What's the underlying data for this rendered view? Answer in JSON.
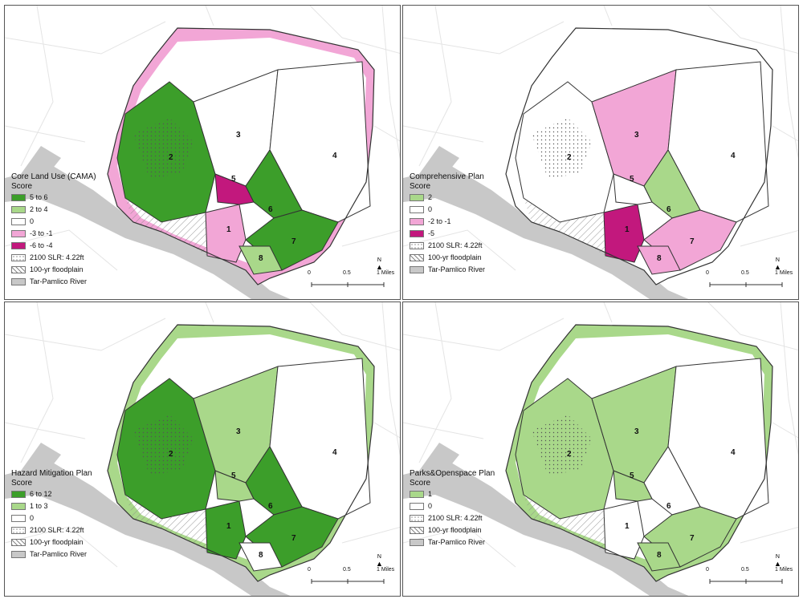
{
  "colors": {
    "dark_green": "#3c9e2a",
    "light_green": "#a9d88a",
    "white": "#ffffff",
    "light_pink": "#f2a6d6",
    "magenta": "#c2187d",
    "river": "#c8c8c8",
    "background_roads": "#e4e4e4",
    "boundary": "#333333"
  },
  "zones": [
    "1",
    "2",
    "3",
    "4",
    "5",
    "6",
    "7",
    "8"
  ],
  "scale": {
    "ticks": [
      "0",
      "0.5",
      "1 Miles"
    ]
  },
  "north_label": "N",
  "panels": [
    {
      "title_line1": "Core Land Use (CAMA)",
      "title_line2": "Score",
      "legend": [
        {
          "label": "5 to 6",
          "color": "#3c9e2a"
        },
        {
          "label": "2 to 4",
          "color": "#a9d88a"
        },
        {
          "label": "0",
          "color": "#ffffff"
        },
        {
          "label": "-3 to -1",
          "color": "#f2a6d6"
        },
        {
          "label": "-6 to -4",
          "color": "#c2187d"
        },
        {
          "label": "2100 SLR: 4.22ft",
          "pattern": "dots"
        },
        {
          "label": "100-yr floodplain",
          "pattern": "hatch"
        },
        {
          "label": "Tar-Pamlico River",
          "color": "#c8c8c8"
        }
      ],
      "zone_colors": [
        "#f2a6d6",
        "#3c9e2a",
        "#ffffff",
        "#ffffff",
        "#c2187d",
        "#3c9e2a",
        "#3c9e2a",
        "#a9d88a"
      ],
      "north_fill": "#ffffff",
      "east_fill": "#ffffff",
      "fringe_color": "#f2a6d6"
    },
    {
      "title_line1": "Comprehensive Plan",
      "title_line2": "Score",
      "legend": [
        {
          "label": "2",
          "color": "#a9d88a"
        },
        {
          "label": "0",
          "color": "#ffffff"
        },
        {
          "label": "-2 to -1",
          "color": "#f2a6d6"
        },
        {
          "label": "-5",
          "color": "#c2187d"
        },
        {
          "label": "2100 SLR: 4.22ft",
          "pattern": "dots"
        },
        {
          "label": "100-yr floodplain",
          "pattern": "hatch"
        },
        {
          "label": "Tar-Pamlico River",
          "color": "#c8c8c8"
        }
      ],
      "zone_colors": [
        "#c2187d",
        "#ffffff",
        "#f2a6d6",
        "#ffffff",
        "#ffffff",
        "#a9d88a",
        "#f2a6d6",
        "#f2a6d6"
      ],
      "north_fill": "#ffffff",
      "east_fill": "#ffffff",
      "fringe_color": "#ffffff"
    },
    {
      "title_line1": "Hazard Mitigation Plan",
      "title_line2": "Score",
      "legend": [
        {
          "label": "6 to 12",
          "color": "#3c9e2a"
        },
        {
          "label": "1 to 3",
          "color": "#a9d88a"
        },
        {
          "label": "0",
          "color": "#ffffff"
        },
        {
          "label": "2100 SLR: 4.22ft",
          "pattern": "dots"
        },
        {
          "label": "100-yr floodplain",
          "pattern": "hatch"
        },
        {
          "label": "Tar-Pamlico River",
          "color": "#c8c8c8"
        }
      ],
      "zone_colors": [
        "#3c9e2a",
        "#3c9e2a",
        "#a9d88a",
        "#ffffff",
        "#a9d88a",
        "#3c9e2a",
        "#3c9e2a",
        "#ffffff"
      ],
      "north_fill": "#ffffff",
      "east_fill": "#ffffff",
      "fringe_color": "#a9d88a"
    },
    {
      "title_line1": "Parks&Openspace Plan",
      "title_line2": "Score",
      "legend": [
        {
          "label": "1",
          "color": "#a9d88a"
        },
        {
          "label": "0",
          "color": "#ffffff"
        },
        {
          "label": "2100 SLR: 4.22ft",
          "pattern": "dots"
        },
        {
          "label": "100-yr floodplain",
          "pattern": "hatch"
        },
        {
          "label": "Tar-Pamlico River",
          "color": "#c8c8c8"
        }
      ],
      "zone_colors": [
        "#ffffff",
        "#a9d88a",
        "#a9d88a",
        "#ffffff",
        "#a9d88a",
        "#ffffff",
        "#a9d88a",
        "#a9d88a"
      ],
      "north_fill": "#ffffff",
      "east_fill": "#ffffff",
      "fringe_color": "#a9d88a"
    }
  ]
}
